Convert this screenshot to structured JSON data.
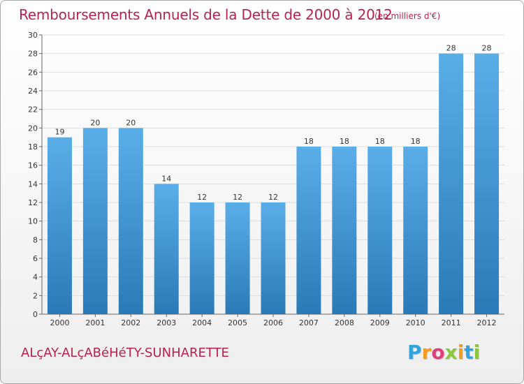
{
  "header": {
    "title": "Remboursements Annuels de la Dette de 2000 à 2012",
    "subtitle": "(en milliers d'€)"
  },
  "footer": {
    "commune": "ALçAY-ALçABéHéTY-SUNHARETTE",
    "logo_letters": [
      "P",
      "r",
      "o",
      "x",
      "i",
      "t",
      "i"
    ],
    "logo_colors": [
      "#2ea3dd",
      "#f39c1e",
      "#e0407a",
      "#8cc63f",
      "#f39c1e",
      "#2ea3dd",
      "#8cc63f"
    ]
  },
  "colors": {
    "bar_light": "#5aaee8",
    "bar_dark": "#2a7ab8",
    "title": "#b5244e",
    "grid": "#dddddd"
  },
  "chart_data": {
    "type": "bar",
    "categories": [
      "2000",
      "2001",
      "2002",
      "2003",
      "2004",
      "2005",
      "2006",
      "2007",
      "2008",
      "2009",
      "2010",
      "2011",
      "2012"
    ],
    "values": [
      19,
      20,
      20,
      14,
      12,
      12,
      12,
      18,
      18,
      18,
      18,
      28,
      28
    ],
    "ylim": [
      0,
      30
    ],
    "yticks": [
      0,
      2,
      4,
      6,
      8,
      10,
      12,
      14,
      16,
      18,
      20,
      22,
      24,
      26,
      28,
      30
    ],
    "grid": true,
    "xlabel": "",
    "ylabel": ""
  }
}
